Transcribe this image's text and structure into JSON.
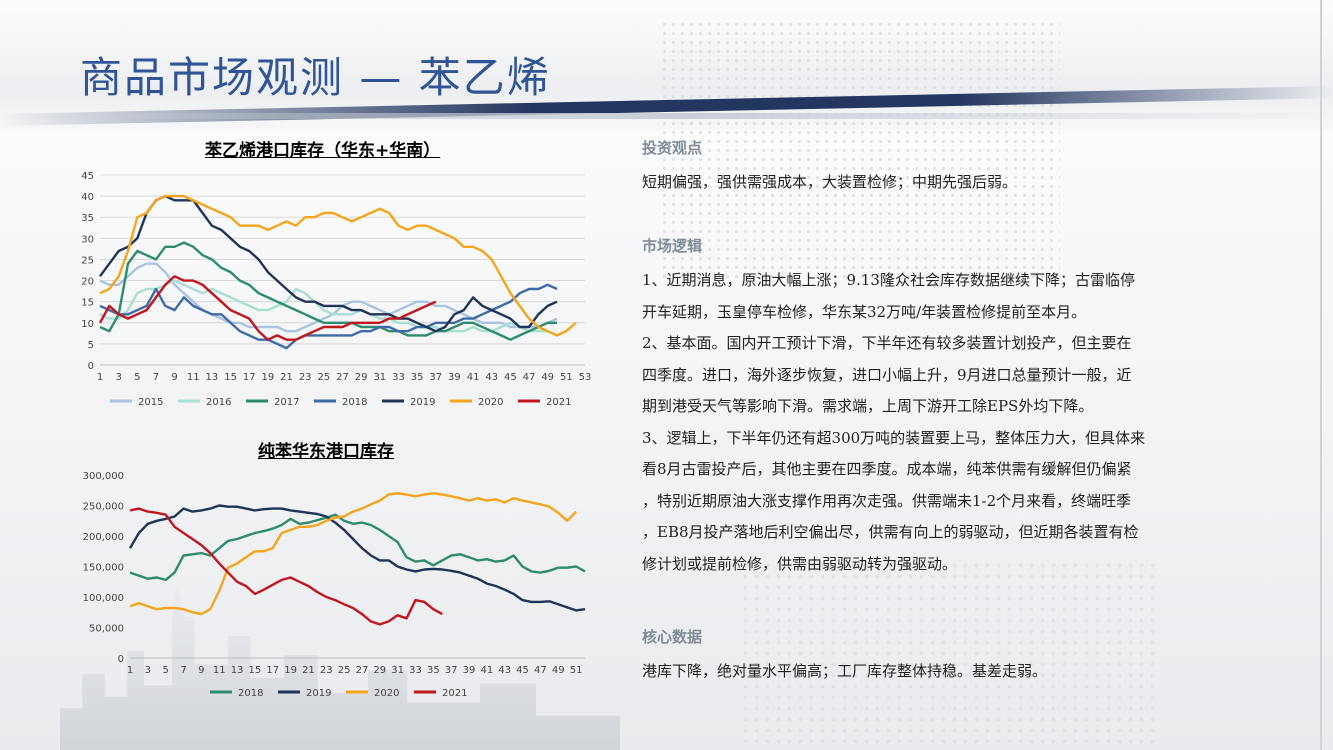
{
  "title": "商品市场观测 — 苯乙烯",
  "colors": {
    "title": "#2f5597",
    "section": "#7f8c99"
  },
  "chart_data": [
    {
      "type": "line",
      "title": "苯乙烯港口库存（华东+华南）",
      "ylim": [
        0,
        45
      ],
      "yticks": [
        0,
        5,
        10,
        15,
        20,
        25,
        30,
        35,
        40,
        45
      ],
      "xticks": [
        1,
        3,
        5,
        7,
        9,
        11,
        13,
        15,
        17,
        19,
        21,
        23,
        25,
        27,
        29,
        31,
        33,
        35,
        37,
        39,
        41,
        43,
        45,
        47,
        49,
        51,
        53
      ],
      "xlim": [
        1,
        53
      ],
      "grid": true,
      "legend": "bottom",
      "series": [
        {
          "name": "2015",
          "color": "#a9c4e0",
          "x_start": 1,
          "values": [
            20,
            19,
            19,
            21,
            23,
            24,
            24,
            22,
            19,
            17,
            15,
            13,
            12,
            11,
            10,
            10,
            9,
            9,
            9,
            9,
            8,
            8,
            9,
            10,
            11,
            12,
            14,
            15,
            15,
            14,
            13,
            12,
            13,
            14,
            15,
            15,
            14,
            14,
            13,
            12,
            11,
            10,
            10,
            10,
            9,
            9,
            9,
            9,
            10,
            11
          ]
        },
        {
          "name": "2016",
          "color": "#a7dfd2",
          "x_start": 1,
          "values": [
            12,
            11,
            11,
            13,
            17,
            18,
            18,
            19,
            20,
            19,
            18,
            17,
            18,
            17,
            16,
            15,
            14,
            13,
            13,
            14,
            15,
            18,
            17,
            15,
            13,
            12,
            12,
            12,
            13,
            12,
            11,
            11,
            10,
            10,
            9,
            9,
            9,
            8,
            8,
            8,
            9,
            8,
            8,
            9,
            10,
            9,
            8,
            8,
            8
          ]
        },
        {
          "name": "2017",
          "color": "#2e8b6e",
          "x_start": 1,
          "values": [
            9,
            8,
            12,
            24,
            27,
            26,
            25,
            28,
            28,
            29,
            28,
            26,
            25,
            23,
            22,
            20,
            19,
            17,
            16,
            15,
            14,
            13,
            12,
            11,
            10,
            10,
            10,
            10,
            9,
            9,
            9,
            8,
            8,
            7,
            7,
            7,
            8,
            8,
            9,
            10,
            10,
            9,
            8,
            7,
            6,
            7,
            8,
            9,
            10,
            10
          ]
        },
        {
          "name": "2018",
          "color": "#3f6aa6",
          "x_start": 1,
          "values": [
            14,
            13,
            12,
            12,
            13,
            14,
            18,
            14,
            13,
            16,
            14,
            13,
            12,
            12,
            10,
            8,
            7,
            6,
            6,
            5,
            4,
            6,
            7,
            7,
            7,
            7,
            7,
            7,
            8,
            8,
            9,
            9,
            8,
            8,
            9,
            9,
            10,
            10,
            10,
            11,
            11,
            12,
            13,
            14,
            15,
            17,
            18,
            18,
            19,
            18
          ]
        },
        {
          "name": "2019",
          "color": "#1f3557",
          "x_start": 1,
          "values": [
            21,
            24,
            27,
            28,
            30,
            36,
            39,
            40,
            39,
            39,
            39,
            36,
            33,
            32,
            30,
            28,
            27,
            25,
            22,
            20,
            18,
            16,
            15,
            15,
            14,
            14,
            14,
            13,
            13,
            12,
            12,
            12,
            11,
            11,
            10,
            9,
            8,
            9,
            12,
            13,
            16,
            14,
            13,
            12,
            11,
            9,
            9,
            12,
            14,
            15
          ]
        },
        {
          "name": "2020",
          "color": "#f4a51c",
          "x_start": 1,
          "values": [
            17,
            18,
            21,
            27,
            35,
            36,
            39,
            40,
            40,
            40,
            39,
            38,
            37,
            36,
            35,
            33,
            33,
            33,
            32,
            33,
            34,
            33,
            35,
            35,
            36,
            36,
            35,
            34,
            35,
            36,
            37,
            36,
            33,
            32,
            33,
            33,
            32,
            31,
            30,
            28,
            28,
            27,
            25,
            21,
            17,
            14,
            11,
            9,
            8,
            7,
            8,
            10
          ]
        },
        {
          "name": "2021",
          "color": "#c0171e",
          "x_start": 1,
          "values": [
            10,
            14,
            12,
            11,
            12,
            13,
            16,
            19,
            21,
            20,
            20,
            19,
            17,
            15,
            13,
            12,
            11,
            8,
            6,
            7,
            6,
            6,
            7,
            8,
            9,
            9,
            9,
            10,
            10,
            10,
            10,
            11,
            11,
            12,
            13,
            14,
            15
          ]
        }
      ]
    },
    {
      "type": "line",
      "title": "纯苯华东港口库存",
      "ylim": [
        0,
        300000
      ],
      "yticks": [
        0,
        50000,
        100000,
        150000,
        200000,
        250000,
        300000
      ],
      "ytick_labels": [
        "0",
        "50,000",
        "100,000",
        "150,000",
        "200,000",
        "250,000",
        "300,000"
      ],
      "xticks": [
        1,
        3,
        5,
        7,
        9,
        11,
        13,
        15,
        17,
        19,
        21,
        23,
        25,
        27,
        29,
        31,
        33,
        35,
        37,
        39,
        41,
        43,
        45,
        47,
        49,
        51
      ],
      "xlim": [
        1,
        52
      ],
      "grid": false,
      "legend": "bottom",
      "series": [
        {
          "name": "2018",
          "color": "#2e8b6e",
          "x_start": 1,
          "values": [
            140000,
            135000,
            130000,
            132000,
            128000,
            140000,
            168000,
            170000,
            172000,
            168000,
            180000,
            192000,
            195000,
            200000,
            205000,
            208000,
            212000,
            218000,
            228000,
            220000,
            222000,
            226000,
            230000,
            235000,
            225000,
            220000,
            222000,
            218000,
            210000,
            200000,
            190000,
            165000,
            158000,
            160000,
            152000,
            160000,
            168000,
            170000,
            165000,
            160000,
            162000,
            158000,
            160000,
            168000,
            150000,
            142000,
            140000,
            143000,
            148000,
            148000,
            150000,
            142000
          ]
        },
        {
          "name": "2019",
          "color": "#1f3557",
          "x_start": 1,
          "values": [
            180000,
            205000,
            220000,
            225000,
            228000,
            232000,
            245000,
            240000,
            242000,
            245000,
            250000,
            248000,
            248000,
            245000,
            242000,
            244000,
            245000,
            245000,
            242000,
            240000,
            238000,
            236000,
            232000,
            222000,
            210000,
            195000,
            180000,
            168000,
            160000,
            160000,
            150000,
            145000,
            142000,
            145000,
            146000,
            145000,
            143000,
            140000,
            135000,
            130000,
            122000,
            118000,
            112000,
            105000,
            95000,
            92000,
            92000,
            93000,
            88000,
            83000,
            78000,
            80000
          ]
        },
        {
          "name": "2020",
          "color": "#f4a51c",
          "x_start": 1,
          "values": [
            85000,
            90000,
            85000,
            80000,
            82000,
            82000,
            80000,
            75000,
            72000,
            80000,
            110000,
            148000,
            155000,
            165000,
            175000,
            175000,
            180000,
            205000,
            210000,
            215000,
            215000,
            218000,
            225000,
            230000,
            232000,
            240000,
            245000,
            252000,
            258000,
            268000,
            270000,
            268000,
            265000,
            268000,
            270000,
            268000,
            265000,
            262000,
            258000,
            262000,
            258000,
            260000,
            255000,
            262000,
            258000,
            255000,
            252000,
            248000,
            238000,
            225000,
            240000
          ]
        },
        {
          "name": "2021",
          "color": "#c0171e",
          "x_start": 1,
          "values": [
            242000,
            245000,
            240000,
            238000,
            235000,
            215000,
            205000,
            195000,
            185000,
            172000,
            155000,
            140000,
            125000,
            118000,
            105000,
            112000,
            120000,
            128000,
            132000,
            125000,
            118000,
            108000,
            100000,
            95000,
            88000,
            82000,
            72000,
            60000,
            55000,
            60000,
            70000,
            65000,
            95000,
            92000,
            80000,
            72000
          ]
        }
      ]
    }
  ],
  "panel": {
    "sections": [
      {
        "title": "投资观点",
        "lines": [
          "短期偏强，强供需强成本，大装置检修；中期先强后弱。"
        ]
      },
      {
        "title": "市场逻辑",
        "lines": [
          "1、近期消息，原油大幅上涨；9.13隆众社会库存数据继续下降；古雷临停",
          "开车延期，玉皇停车检修，华东某32万吨/年装置检修提前至本月。",
          "2、基本面。国内开工预计下滑，下半年还有较多装置计划投产，但主要在",
          "四季度。进口，海外逐步恢复，进口小幅上升，9月进口总量预计一般，近",
          "期到港受天气等影响下滑。需求端，上周下游开工除EPS外均下降。",
          "3、逻辑上，下半年仍还有超300万吨的装置要上马，整体压力大，但具体来",
          "看8月古雷投产后，其他主要在四季度。成本端，纯苯供需有缓解但仍偏紧",
          "，特别近期原油大涨支撑作用再次走强。供需端未1-2个月来看，终端旺季",
          "，EB8月投产落地后利空偏出尽，供需有向上的弱驱动，但近期各装置有检",
          "修计划或提前检修，供需由弱驱动转为强驱动。"
        ]
      },
      {
        "title": "核心数据",
        "lines": [
          "港库下降，绝对量水平偏高；工厂库存整体持稳。基差走弱。"
        ]
      }
    ]
  }
}
